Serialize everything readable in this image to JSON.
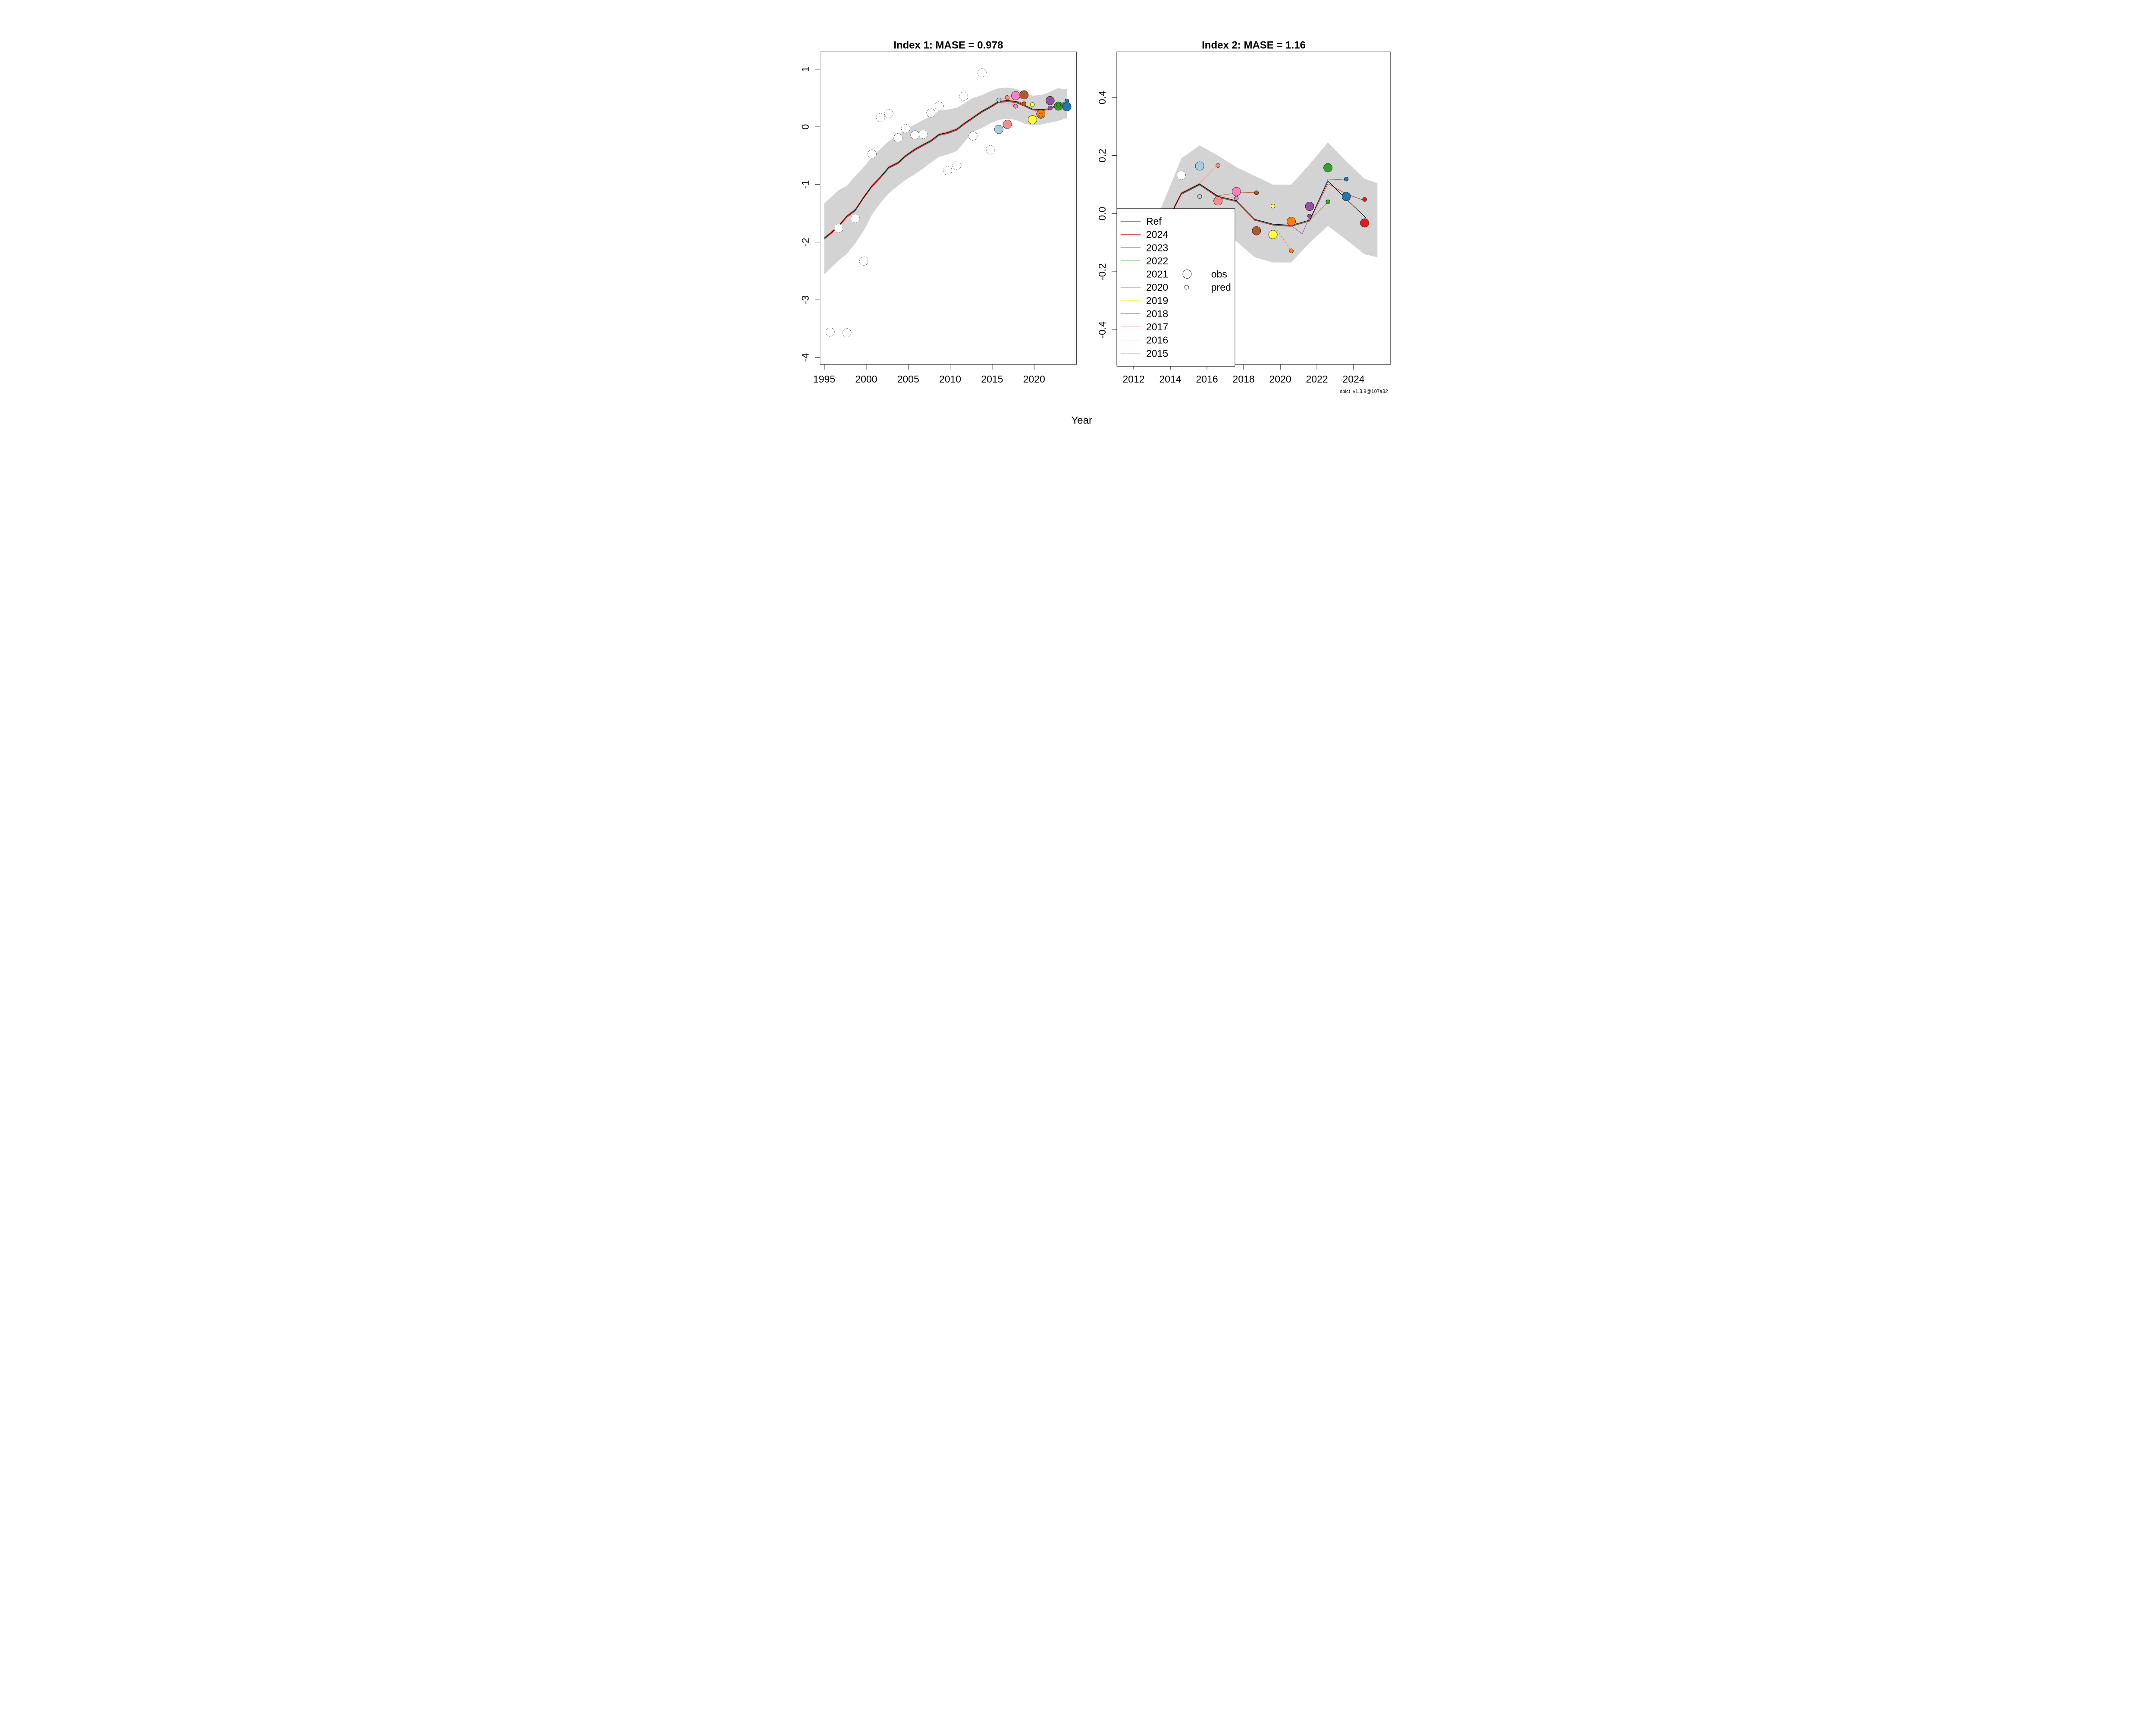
{
  "figure": {
    "xlabel": "Year",
    "watermark": "spict_v1.3.8@107a32",
    "background": "#ffffff",
    "band_color": "#d3d3d3",
    "panel_border_color": "#000000",
    "colors": {
      "Ref": "#000000",
      "2024": "#e31a1c",
      "2023": "#1f78b4",
      "2022": "#33a02c",
      "2021": "#9251a1",
      "2020": "#ff7f00",
      "2019": "#ffff33",
      "2018": "#b15928",
      "2017": "#f781bf",
      "2016": "#f28e8e",
      "2015": "#a6cee3"
    },
    "legend": {
      "items": [
        "Ref",
        "2024",
        "2023",
        "2022",
        "2021",
        "2020",
        "2019",
        "2018",
        "2017",
        "2016",
        "2015"
      ],
      "obs_label": "obs",
      "pred_label": "pred"
    }
  },
  "chart_data": [
    {
      "type": "line",
      "title": "Index 1: MASE = 0.978",
      "mase": 0.978,
      "xlabel": "Year",
      "ylabel": "",
      "grid": false,
      "xlim": [
        1994.5,
        2025.06
      ],
      "ylim": [
        -4.12,
        1.3
      ],
      "xticks": [
        1995,
        2000,
        2005,
        2010,
        2015,
        2020
      ],
      "yticks": [
        1,
        0,
        -1,
        -2,
        -3,
        -4
      ],
      "band": {
        "upper": [
          [
            1995.0,
            -1.33
          ],
          [
            1996.7,
            -1.1
          ],
          [
            1997.7,
            -1.02
          ],
          [
            1998.7,
            -0.85
          ],
          [
            1999.7,
            -0.7
          ],
          [
            2000.7,
            -0.52
          ],
          [
            2001.7,
            -0.38
          ],
          [
            2002.7,
            -0.25
          ],
          [
            2003.8,
            -0.15
          ],
          [
            2004.7,
            -0.04
          ],
          [
            2005.8,
            0.04
          ],
          [
            2006.8,
            0.12
          ],
          [
            2007.7,
            0.18
          ],
          [
            2008.7,
            0.28
          ],
          [
            2009.7,
            0.3
          ],
          [
            2010.8,
            0.33
          ],
          [
            2011.6,
            0.4
          ],
          [
            2012.7,
            0.5
          ],
          [
            2013.8,
            0.55
          ],
          [
            2014.8,
            0.62
          ],
          [
            2015.8,
            0.67
          ],
          [
            2016.8,
            0.68
          ],
          [
            2017.8,
            0.66
          ],
          [
            2018.8,
            0.6
          ],
          [
            2019.8,
            0.54
          ],
          [
            2020.8,
            0.55
          ],
          [
            2021.8,
            0.6
          ],
          [
            2022.8,
            0.67
          ],
          [
            2023.9,
            0.65
          ]
        ],
        "lower": [
          [
            1995.0,
            -2.56
          ],
          [
            1996.7,
            -2.32
          ],
          [
            1997.7,
            -2.2
          ],
          [
            1998.7,
            -2.02
          ],
          [
            1999.7,
            -1.8
          ],
          [
            2000.7,
            -1.52
          ],
          [
            2001.7,
            -1.32
          ],
          [
            2002.7,
            -1.15
          ],
          [
            2003.8,
            -1.02
          ],
          [
            2004.7,
            -0.92
          ],
          [
            2005.8,
            -0.82
          ],
          [
            2006.8,
            -0.72
          ],
          [
            2007.7,
            -0.62
          ],
          [
            2008.7,
            -0.52
          ],
          [
            2009.7,
            -0.48
          ],
          [
            2010.8,
            -0.42
          ],
          [
            2011.6,
            -0.28
          ],
          [
            2012.7,
            -0.09
          ],
          [
            2013.8,
            -0.02
          ],
          [
            2014.8,
            0.06
          ],
          [
            2015.8,
            0.12
          ],
          [
            2016.8,
            0.14
          ],
          [
            2017.8,
            0.12
          ],
          [
            2018.8,
            0.06
          ],
          [
            2019.8,
            0.02
          ],
          [
            2020.8,
            0.04
          ],
          [
            2021.8,
            0.07
          ],
          [
            2022.8,
            0.1
          ],
          [
            2023.9,
            0.15
          ]
        ]
      },
      "ref_line": [
        [
          1995.0,
          -1.93
        ],
        [
          1995.7,
          -1.85
        ],
        [
          1996.7,
          -1.72
        ],
        [
          1997.7,
          -1.55
        ],
        [
          1998.7,
          -1.44
        ],
        [
          1999.7,
          -1.22
        ],
        [
          2000.7,
          -1.02
        ],
        [
          2001.7,
          -0.87
        ],
        [
          2002.7,
          -0.7
        ],
        [
          2003.8,
          -0.62
        ],
        [
          2004.7,
          -0.5
        ],
        [
          2005.8,
          -0.39
        ],
        [
          2006.8,
          -0.31
        ],
        [
          2007.7,
          -0.24
        ],
        [
          2008.7,
          -0.13
        ],
        [
          2009.7,
          -0.1
        ],
        [
          2010.8,
          -0.04
        ],
        [
          2011.6,
          0.05
        ],
        [
          2012.7,
          0.16
        ],
        [
          2013.8,
          0.27
        ],
        [
          2014.8,
          0.35
        ],
        [
          2015.8,
          0.44
        ],
        [
          2016.8,
          0.455
        ],
        [
          2017.8,
          0.44
        ],
        [
          2018.8,
          0.38
        ],
        [
          2019.8,
          0.31
        ],
        [
          2020.8,
          0.3
        ],
        [
          2021.8,
          0.315
        ],
        [
          2022.8,
          0.385
        ],
        [
          2023.9,
          0.41
        ]
      ],
      "obs_white": [
        [
          1995.7,
          -3.56
        ],
        [
          1996.7,
          -1.76
        ],
        [
          1997.7,
          -3.57
        ],
        [
          1998.7,
          -1.59
        ],
        [
          1999.7,
          -2.33
        ],
        [
          2000.7,
          -0.47
        ],
        [
          2001.7,
          0.16
        ],
        [
          2002.7,
          0.23
        ],
        [
          2003.8,
          -0.19
        ],
        [
          2004.7,
          -0.03
        ],
        [
          2005.8,
          -0.14
        ],
        [
          2006.8,
          -0.13
        ],
        [
          2007.7,
          0.24
        ],
        [
          2008.7,
          0.36
        ],
        [
          2009.7,
          -0.76
        ],
        [
          2010.8,
          -0.67
        ],
        [
          2011.6,
          0.53
        ],
        [
          2012.7,
          -0.16
        ],
        [
          2013.8,
          0.94
        ],
        [
          2014.8,
          -0.4
        ]
      ],
      "peels": [
        {
          "label": "2015",
          "from": 2014.8,
          "tail": [
            [
              2015.8,
              0.465
            ]
          ],
          "style": "dotted",
          "obs": [
            2015.8,
            -0.045
          ],
          "pred": [
            2015.8,
            0.465
          ]
        },
        {
          "label": "2016",
          "from": 2015.8,
          "tail": [
            [
              2016.8,
              0.507
            ]
          ],
          "style": "solid",
          "obs": [
            2016.8,
            0.043
          ],
          "pred": [
            2016.8,
            0.507
          ]
        },
        {
          "label": "2017",
          "from": 2015.8,
          "tail": [
            [
              2016.8,
              0.4
            ],
            [
              2017.8,
              0.357
            ]
          ],
          "style": "solid",
          "obs": [
            2017.8,
            0.54
          ],
          "pred": [
            2017.8,
            0.357
          ]
        },
        {
          "label": "2018",
          "from": 2017.8,
          "tail": [
            [
              2018.8,
              0.4
            ]
          ],
          "style": "solid",
          "obs": [
            2018.8,
            0.555
          ],
          "pred": [
            2018.8,
            0.4
          ]
        },
        {
          "label": "2019",
          "from": 2018.8,
          "tail": [
            [
              2019.8,
              0.385
            ]
          ],
          "style": "dotted",
          "obs": [
            2019.8,
            0.123
          ],
          "pred": [
            2019.8,
            0.385
          ]
        },
        {
          "label": "2020",
          "from": 2019.8,
          "tail": [
            [
              2020.8,
              0.202
            ]
          ],
          "style": "dashed",
          "obs": [
            2020.8,
            0.222
          ],
          "pred": [
            2020.8,
            0.202
          ]
        },
        {
          "label": "2021",
          "from": 2020.8,
          "tail": [
            [
              2021.9,
              0.327
            ]
          ],
          "style": "solid",
          "obs": [
            2021.9,
            0.455
          ],
          "pred": [
            2021.9,
            0.327
          ]
        },
        {
          "label": "2022",
          "from": 2021.8,
          "tail": [
            [
              2022.9,
              0.378
            ]
          ],
          "style": "solid",
          "obs": [
            2022.9,
            0.36
          ],
          "pred": [
            2022.9,
            0.378
          ]
        },
        {
          "label": "2023",
          "from": 2021.8,
          "tail": [
            [
              2022.9,
              0.42
            ],
            [
              2023.9,
              0.449
            ]
          ],
          "style": "solid",
          "obs": [
            2023.9,
            0.348
          ],
          "pred": [
            2023.9,
            0.449
          ]
        },
        {
          "label": "2024",
          "from": 2023.9,
          "tail": [],
          "style": "solid",
          "obs": null,
          "pred": null
        }
      ]
    },
    {
      "type": "line",
      "title": "Index 2: MASE = 1.16",
      "mase": 1.16,
      "xlabel": "Year",
      "ylabel": "",
      "grid": false,
      "xlim": [
        2011.08,
        2026.02
      ],
      "ylim": [
        -0.519,
        0.557
      ],
      "xticks": [
        2012,
        2014,
        2016,
        2018,
        2020,
        2022,
        2024
      ],
      "yticks": [
        0.4,
        0.2,
        0.0,
        -0.2,
        -0.4
      ],
      "band": {
        "upper": [
          [
            2013.5,
            0.02
          ],
          [
            2014.6,
            0.19
          ],
          [
            2015.6,
            0.235
          ],
          [
            2016.6,
            0.2
          ],
          [
            2017.6,
            0.16
          ],
          [
            2018.6,
            0.13
          ],
          [
            2019.6,
            0.1
          ],
          [
            2020.6,
            0.1
          ],
          [
            2021.6,
            0.17
          ],
          [
            2022.6,
            0.245
          ],
          [
            2023.6,
            0.18
          ],
          [
            2024.6,
            0.12
          ],
          [
            2025.3,
            0.105
          ]
        ],
        "lower": [
          [
            2013.5,
            -0.05
          ],
          [
            2014.6,
            -0.02
          ],
          [
            2015.6,
            -0.03
          ],
          [
            2016.6,
            -0.06
          ],
          [
            2017.6,
            -0.095
          ],
          [
            2018.6,
            -0.15
          ],
          [
            2019.6,
            -0.168
          ],
          [
            2020.6,
            -0.168
          ],
          [
            2021.6,
            -0.1
          ],
          [
            2022.6,
            -0.042
          ],
          [
            2023.6,
            -0.09
          ],
          [
            2024.6,
            -0.14
          ],
          [
            2025.3,
            -0.15
          ]
        ]
      },
      "ref_line": [
        [
          2013.6,
          -0.055
        ],
        [
          2014.6,
          0.07
        ],
        [
          2015.6,
          0.102
        ],
        [
          2016.6,
          0.06
        ],
        [
          2017.6,
          0.045
        ],
        [
          2018.6,
          -0.019
        ],
        [
          2019.6,
          -0.036
        ],
        [
          2020.6,
          -0.04
        ],
        [
          2021.6,
          -0.022
        ],
        [
          2022.6,
          0.112
        ],
        [
          2023.6,
          0.05
        ],
        [
          2024.7,
          -0.016
        ]
      ],
      "obs_white": [
        [
          2014.6,
          0.132
        ]
      ],
      "peels": [
        {
          "label": "2015",
          "from": 2014.6,
          "tail": [
            [
              2015.6,
              0.059
            ]
          ],
          "style": "dotted",
          "obs": [
            2015.6,
            0.164
          ],
          "pred": [
            2015.6,
            0.059
          ]
        },
        {
          "label": "2016",
          "from": 2015.6,
          "tail": [
            [
              2016.6,
              0.166
            ]
          ],
          "style": "solid",
          "obs": [
            2016.6,
            0.044
          ],
          "pred": [
            2016.6,
            0.166
          ]
        },
        {
          "label": "2017",
          "from": 2015.6,
          "tail": [
            [
              2016.6,
              0.05
            ],
            [
              2017.6,
              0.053
            ]
          ],
          "style": "solid",
          "obs": [
            2017.6,
            0.076
          ],
          "pred": [
            2017.6,
            0.053
          ]
        },
        {
          "label": "2018",
          "from": 2016.6,
          "tail": [
            [
              2017.6,
              0.07
            ],
            [
              2018.7,
              0.072
            ]
          ],
          "style": "solid",
          "obs": [
            2018.7,
            -0.059
          ],
          "pred": [
            2018.7,
            0.072
          ]
        },
        {
          "label": "2019",
          "from": 2018.6,
          "tail": [
            [
              2019.6,
              0.026
            ]
          ],
          "style": "dotted",
          "obs": [
            2019.6,
            -0.072
          ],
          "pred": [
            2019.6,
            0.026
          ]
        },
        {
          "label": "2020",
          "from": 2019.6,
          "tail": [
            [
              2020.6,
              -0.128
            ]
          ],
          "style": "dashed",
          "obs": [
            2020.6,
            -0.027
          ],
          "pred": [
            2020.6,
            -0.128
          ]
        },
        {
          "label": "2021",
          "from": 2020.6,
          "tail": [
            [
              2021.2,
              -0.068
            ],
            [
              2021.6,
              -0.009
            ]
          ],
          "style": "solid",
          "obs": [
            2021.6,
            0.025
          ],
          "pred": [
            2021.6,
            -0.009
          ]
        },
        {
          "label": "2022",
          "from": 2021.6,
          "tail": [
            [
              2022.6,
              0.041
            ]
          ],
          "style": "solid",
          "obs": [
            2022.6,
            0.158
          ],
          "pred": [
            2022.6,
            0.041
          ]
        },
        {
          "label": "2023",
          "from": 2021.6,
          "tail": [
            [
              2022.6,
              0.122
            ],
            [
              2023.6,
              0.119
            ]
          ],
          "style": "solid",
          "obs": [
            2023.6,
            0.059
          ],
          "pred": [
            2023.6,
            0.119
          ]
        },
        {
          "label": "2024",
          "from": 2021.6,
          "tail": [
            [
              2022.6,
              0.107
            ],
            [
              2023.6,
              0.072
            ],
            [
              2024.6,
              0.049
            ]
          ],
          "style": "solid",
          "obs": [
            2024.6,
            -0.032
          ],
          "pred": [
            2024.6,
            0.049
          ]
        }
      ]
    }
  ]
}
